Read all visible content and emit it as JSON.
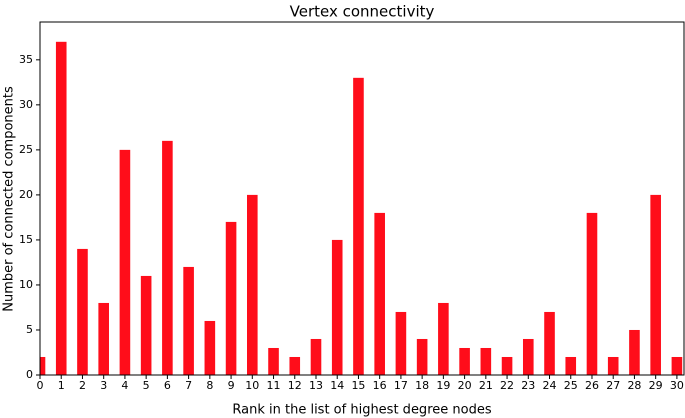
{
  "chart_data": {
    "type": "bar",
    "title": "Vertex connectivity",
    "x_label": "Rank in the list of highest degree nodes",
    "y_label": "Number of connected components",
    "categories": [
      "0",
      "1",
      "2",
      "3",
      "4",
      "5",
      "6",
      "7",
      "8",
      "9",
      "10",
      "11",
      "12",
      "13",
      "14",
      "15",
      "16",
      "17",
      "18",
      "19",
      "20",
      "21",
      "22",
      "23",
      "24",
      "25",
      "26",
      "27",
      "28",
      "29",
      "30"
    ],
    "values": [
      2,
      37,
      14,
      8,
      25,
      11,
      26,
      12,
      6,
      17,
      20,
      3,
      2,
      4,
      15,
      33,
      18,
      7,
      4,
      8,
      3,
      3,
      2,
      4,
      7,
      2,
      18,
      2,
      5,
      20,
      2
    ],
    "color": "#ff0d1a",
    "ylim": [
      0,
      39.2
    ],
    "yticks": [
      0,
      5,
      10,
      15,
      20,
      25,
      30,
      35
    ],
    "grid": false
  }
}
